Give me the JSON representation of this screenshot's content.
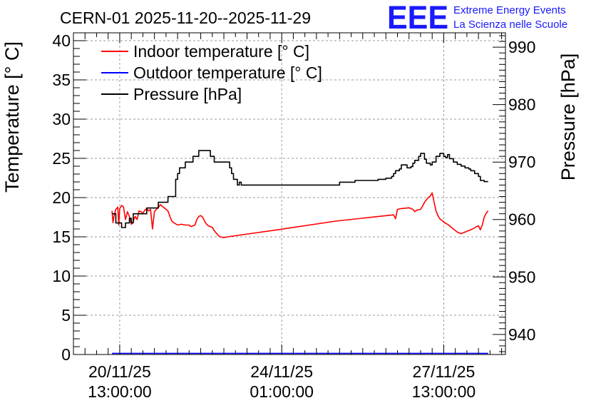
{
  "chart_data": {
    "type": "line",
    "title": "CERN-01 2025-11-20--2025-11-29",
    "brand": {
      "logo_text": "EEE",
      "line1": "Extreme Energy Events",
      "line2": "La Scienza nelle Scuole",
      "color": "#1a1aff"
    },
    "ylabel_left": "Temperature [° C]",
    "ylabel_right": "Pressure [hPa]",
    "ylim_left": [
      0,
      41
    ],
    "ylim_right": [
      936.5,
      992.5
    ],
    "x_range_hours": [
      -6,
      218
    ],
    "xticks": [
      {
        "hours": 18,
        "line1": "20/11/25",
        "line2": "13:00:00"
      },
      {
        "hours": 102,
        "line1": "24/11/25",
        "line2": "01:00:00"
      },
      {
        "hours": 186,
        "line1": "27/11/25",
        "line2": "13:00:00"
      }
    ],
    "yticks_left": [
      "0",
      "5",
      "10",
      "15",
      "20",
      "25",
      "30",
      "35",
      "40"
    ],
    "yticks_right": [
      "940",
      "950",
      "960",
      "970",
      "980",
      "990"
    ],
    "legend": [
      {
        "label": "Indoor temperature [° C]",
        "color": "#ff0000"
      },
      {
        "label": "Outdoor temperature [° C]",
        "color": "#0000ff"
      },
      {
        "label": "Pressure [hPa]",
        "color": "#000000"
      }
    ],
    "series": [
      {
        "name": "Indoor temperature [° C]",
        "axis": "left",
        "color": "#ff0000",
        "points": [
          [
            14,
            18.3
          ],
          [
            14.5,
            16.8
          ],
          [
            15,
            17.6
          ],
          [
            16,
            18.5
          ],
          [
            17,
            18.8
          ],
          [
            17.5,
            16.5
          ],
          [
            18,
            18.6
          ],
          [
            19,
            19.0
          ],
          [
            20,
            18.8
          ],
          [
            21,
            17.2
          ],
          [
            22,
            18.2
          ],
          [
            23,
            17.6
          ],
          [
            24,
            16.6
          ],
          [
            25,
            17.0
          ],
          [
            26,
            17.6
          ],
          [
            27,
            17.2
          ],
          [
            28,
            18.3
          ],
          [
            29,
            18.2
          ],
          [
            30,
            18.0
          ],
          [
            31,
            18.4
          ],
          [
            32,
            18.6
          ],
          [
            33,
            18.3
          ],
          [
            34,
            18.5
          ],
          [
            35,
            16.0
          ],
          [
            36,
            18.2
          ],
          [
            37,
            18.5
          ],
          [
            38,
            18.7
          ],
          [
            39,
            19.1
          ],
          [
            40,
            18.9
          ],
          [
            41,
            18.7
          ],
          [
            42,
            18.5
          ],
          [
            43,
            18.3
          ],
          [
            44,
            17.6
          ],
          [
            45,
            17.0
          ],
          [
            46,
            16.8
          ],
          [
            48,
            16.5
          ],
          [
            50,
            16.6
          ],
          [
            52,
            16.5
          ],
          [
            54,
            16.5
          ],
          [
            55,
            16.3
          ],
          [
            57,
            16.5
          ],
          [
            58,
            17.2
          ],
          [
            59,
            17.6
          ],
          [
            60,
            17.7
          ],
          [
            61,
            17.5
          ],
          [
            62,
            17.0
          ],
          [
            63,
            16.6
          ],
          [
            64,
            16.4
          ],
          [
            66,
            16.2
          ],
          [
            67,
            15.8
          ],
          [
            68,
            15.5
          ],
          [
            69,
            15.2
          ],
          [
            70,
            15.0
          ],
          [
            72,
            14.9
          ],
          [
            74,
            15.0
          ],
          [
            100,
            15.9
          ],
          [
            130,
            17.0
          ],
          [
            160,
            17.8
          ],
          [
            161,
            17.3
          ],
          [
            162,
            18.5
          ],
          [
            164,
            18.6
          ],
          [
            168,
            18.7
          ],
          [
            170,
            18.5
          ],
          [
            171,
            18.2
          ],
          [
            172,
            18.4
          ],
          [
            174,
            18.5
          ],
          [
            175,
            18.9
          ],
          [
            176,
            19.4
          ],
          [
            177,
            19.7
          ],
          [
            178,
            20.0
          ],
          [
            179,
            20.2
          ],
          [
            180,
            20.6
          ],
          [
            181,
            19.4
          ],
          [
            182,
            18.3
          ],
          [
            183,
            17.7
          ],
          [
            184,
            17.3
          ],
          [
            185,
            17.1
          ],
          [
            186,
            16.9
          ],
          [
            187,
            16.7
          ],
          [
            188,
            16.6
          ],
          [
            189,
            16.4
          ],
          [
            190,
            16.2
          ],
          [
            191,
            16.0
          ],
          [
            192,
            15.8
          ],
          [
            193,
            15.6
          ],
          [
            194,
            15.5
          ],
          [
            195,
            15.4
          ],
          [
            197,
            15.6
          ],
          [
            199,
            15.8
          ],
          [
            201,
            16.0
          ],
          [
            203,
            16.3
          ],
          [
            204,
            16.4
          ],
          [
            205,
            15.9
          ],
          [
            206,
            16.5
          ],
          [
            207,
            17.5
          ],
          [
            208,
            18.0
          ],
          [
            209,
            18.3
          ]
        ]
      },
      {
        "name": "Outdoor temperature [° C]",
        "axis": "left",
        "color": "#0000ff",
        "points": [
          [
            14,
            0.15
          ],
          [
            209,
            0.15
          ]
        ]
      },
      {
        "name": "Pressure [hPa]",
        "axis": "right",
        "color": "#000000",
        "step": true,
        "points": [
          [
            14,
            961
          ],
          [
            16,
            959.4
          ],
          [
            19,
            958.6
          ],
          [
            21,
            959.4
          ],
          [
            23,
            960.2
          ],
          [
            24,
            959.4
          ],
          [
            25,
            961
          ],
          [
            31,
            961
          ],
          [
            32,
            962
          ],
          [
            37,
            962
          ],
          [
            38,
            963
          ],
          [
            42,
            963
          ],
          [
            43,
            964
          ],
          [
            47,
            967
          ],
          [
            48,
            968
          ],
          [
            49,
            969
          ],
          [
            51,
            969
          ],
          [
            52,
            970
          ],
          [
            55,
            970
          ],
          [
            56,
            971
          ],
          [
            58,
            971
          ],
          [
            59,
            972
          ],
          [
            64,
            972
          ],
          [
            65,
            971
          ],
          [
            67,
            970
          ],
          [
            74,
            970
          ],
          [
            75,
            969
          ],
          [
            76,
            968
          ],
          [
            77,
            967
          ],
          [
            79,
            966
          ],
          [
            80,
            966.5
          ],
          [
            81,
            966
          ],
          [
            83,
            966
          ],
          [
            132,
            966.5
          ],
          [
            140,
            966.8
          ],
          [
            152,
            967
          ],
          [
            156,
            967.2
          ],
          [
            158,
            967.2
          ],
          [
            159,
            967.5
          ],
          [
            160,
            968
          ],
          [
            161,
            968.5
          ],
          [
            163,
            968.8
          ],
          [
            164,
            969.5
          ],
          [
            166,
            969.5
          ],
          [
            167,
            969
          ],
          [
            169,
            969.2
          ],
          [
            170,
            969.8
          ],
          [
            171,
            970.3
          ],
          [
            173,
            971
          ],
          [
            174,
            971.5
          ],
          [
            176,
            970.5
          ],
          [
            177,
            969.8
          ],
          [
            179,
            969.5
          ],
          [
            180,
            970
          ],
          [
            182,
            971
          ],
          [
            184,
            971.5
          ],
          [
            186,
            971
          ],
          [
            187,
            970.8
          ],
          [
            188,
            971.3
          ],
          [
            189,
            970.6
          ],
          [
            191,
            970
          ],
          [
            193,
            969.6
          ],
          [
            195,
            969.3
          ],
          [
            197,
            969
          ],
          [
            199,
            968.8
          ],
          [
            200,
            968.5
          ],
          [
            202,
            968
          ],
          [
            204,
            967.5
          ],
          [
            205,
            966.8
          ],
          [
            207,
            966.6
          ],
          [
            209,
            966.6
          ]
        ]
      }
    ]
  }
}
